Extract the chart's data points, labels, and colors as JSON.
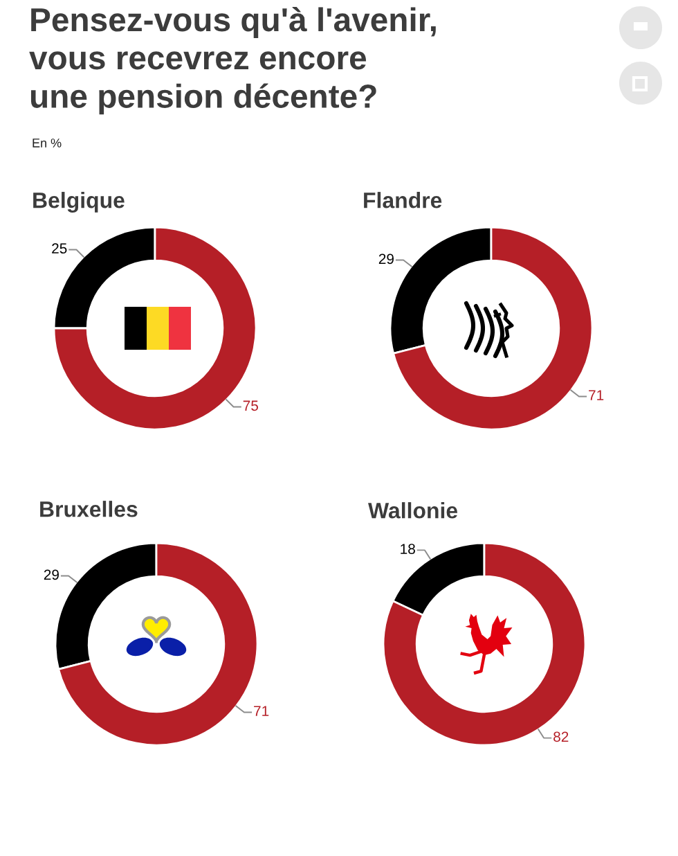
{
  "chart_data": [
    {
      "type": "donut",
      "title": "Belgique",
      "categories": [
        null,
        null
      ],
      "values": [
        25,
        75
      ],
      "colors": [
        "#000000",
        "#b51f27"
      ],
      "data_labels": true,
      "annotations": [
        "Pensez-vous qu'à l'avenir,\nvous recevrez encore\nune pension décente?",
        "En %"
      ]
    },
    {
      "type": "donut",
      "title": "Flandre",
      "categories": [
        null,
        null
      ],
      "values": [
        29,
        71
      ],
      "colors": [
        "#000000",
        "#b51f27"
      ],
      "data_labels": true
    },
    {
      "type": "donut",
      "title": "Bruxelles",
      "categories": [
        null,
        null
      ],
      "values": [
        29,
        71
      ],
      "colors": [
        "#000000",
        "#b51f27"
      ],
      "data_labels": true
    },
    {
      "type": "donut",
      "title": "Wallonie",
      "categories": [
        null,
        null
      ],
      "values": [
        18,
        82
      ],
      "colors": [
        "#000000",
        "#b51f27"
      ],
      "data_labels": true
    }
  ]
}
